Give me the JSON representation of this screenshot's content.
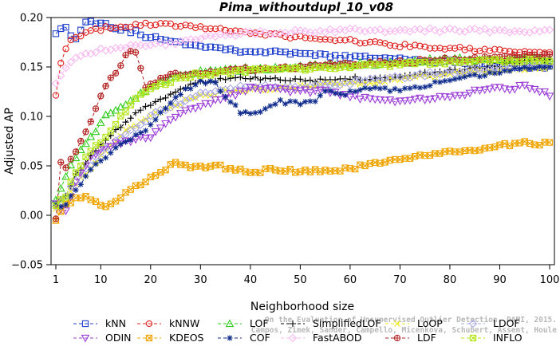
{
  "chart_data": {
    "type": "line",
    "title": "Pima_withoutdupl_10_v08",
    "xlabel": "Neighborhood size",
    "ylabel": "Adjusted AP",
    "xlim": [
      1,
      100
    ],
    "ylim": [
      -0.05,
      0.2
    ],
    "x_ticks": [
      1,
      10,
      20,
      30,
      40,
      50,
      60,
      70,
      80,
      90,
      100
    ],
    "y_ticks": [
      -0.05,
      0.0,
      0.05,
      0.1,
      0.15,
      0.2
    ],
    "y_tick_labels": [
      "−0.05",
      "0.00",
      "0.05",
      "0.10",
      "0.15",
      "0.20"
    ],
    "grid": false,
    "legend_position": "bottom",
    "watermark": [
      "Campos, Zimek, Sander, Campello, Micenkova, Schubert, Assent, Houle",
      "On the Evaluation of Unsupervised Outlier Detection. DAMI, 2015."
    ],
    "series": [
      {
        "name": "kNN",
        "color": "#1f3fcc",
        "marker": "square",
        "dash": "4,3",
        "keyframes": [
          [
            1,
            0.185
          ],
          [
            3,
            0.19
          ],
          [
            4,
            0.183
          ],
          [
            5,
            0.178
          ],
          [
            7,
            0.197
          ],
          [
            10,
            0.195
          ],
          [
            13,
            0.19
          ],
          [
            15,
            0.188
          ],
          [
            20,
            0.18
          ],
          [
            25,
            0.175
          ],
          [
            30,
            0.172
          ],
          [
            35,
            0.168
          ],
          [
            40,
            0.166
          ],
          [
            50,
            0.163
          ],
          [
            60,
            0.16
          ],
          [
            70,
            0.158
          ],
          [
            80,
            0.155
          ],
          [
            90,
            0.152
          ],
          [
            100,
            0.149
          ]
        ]
      },
      {
        "name": "kNNW",
        "color": "#e0211f",
        "marker": "circle",
        "dash": "4,3",
        "keyframes": [
          [
            1,
            0.12
          ],
          [
            2,
            0.153
          ],
          [
            3,
            0.17
          ],
          [
            4,
            0.178
          ],
          [
            6,
            0.18
          ],
          [
            8,
            0.186
          ],
          [
            12,
            0.19
          ],
          [
            16,
            0.192
          ],
          [
            20,
            0.193
          ],
          [
            25,
            0.192
          ],
          [
            30,
            0.19
          ],
          [
            40,
            0.185
          ],
          [
            50,
            0.18
          ],
          [
            60,
            0.176
          ],
          [
            70,
            0.172
          ],
          [
            80,
            0.169
          ],
          [
            90,
            0.166
          ],
          [
            100,
            0.164
          ]
        ]
      },
      {
        "name": "LOF",
        "color": "#2ecc1a",
        "marker": "triangle",
        "dash": "4,3",
        "keyframes": [
          [
            1,
            0.015
          ],
          [
            3,
            0.04
          ],
          [
            5,
            0.06
          ],
          [
            8,
            0.078
          ],
          [
            11,
            0.1
          ],
          [
            14,
            0.11
          ],
          [
            17,
            0.12
          ],
          [
            20,
            0.13
          ],
          [
            25,
            0.14
          ],
          [
            30,
            0.145
          ],
          [
            40,
            0.148
          ],
          [
            50,
            0.15
          ],
          [
            60,
            0.152
          ],
          [
            70,
            0.155
          ],
          [
            80,
            0.158
          ],
          [
            90,
            0.158
          ],
          [
            100,
            0.158
          ]
        ]
      },
      {
        "name": "SimplifiedLOF",
        "color": "#000000",
        "marker": "plus",
        "dash": "4,3",
        "keyframes": [
          [
            1,
            0.01
          ],
          [
            3,
            0.02
          ],
          [
            5,
            0.04
          ],
          [
            8,
            0.062
          ],
          [
            11,
            0.075
          ],
          [
            15,
            0.095
          ],
          [
            18,
            0.108
          ],
          [
            22,
            0.118
          ],
          [
            25,
            0.126
          ],
          [
            30,
            0.134
          ],
          [
            35,
            0.138
          ],
          [
            40,
            0.138
          ],
          [
            45,
            0.137
          ],
          [
            50,
            0.136
          ],
          [
            60,
            0.138
          ],
          [
            70,
            0.14
          ],
          [
            80,
            0.146
          ],
          [
            90,
            0.152
          ],
          [
            100,
            0.159
          ]
        ]
      },
      {
        "name": "LoOP",
        "color": "#f0e81a",
        "marker": "x",
        "dash": "4,3",
        "keyframes": [
          [
            1,
            0.005
          ],
          [
            3,
            0.015
          ],
          [
            5,
            0.03
          ],
          [
            8,
            0.048
          ],
          [
            11,
            0.065
          ],
          [
            15,
            0.085
          ],
          [
            20,
            0.1
          ],
          [
            25,
            0.112
          ],
          [
            30,
            0.12
          ],
          [
            35,
            0.125
          ],
          [
            40,
            0.128
          ],
          [
            45,
            0.128
          ],
          [
            50,
            0.13
          ],
          [
            60,
            0.133
          ],
          [
            70,
            0.138
          ],
          [
            80,
            0.143
          ],
          [
            90,
            0.147
          ],
          [
            100,
            0.15
          ]
        ]
      },
      {
        "name": "LDOF",
        "color": "#a7a7e8",
        "marker": "diamond",
        "dash": "4,3",
        "keyframes": [
          [
            1,
            0.01
          ],
          [
            3,
            0.02
          ],
          [
            5,
            0.035
          ],
          [
            8,
            0.052
          ],
          [
            11,
            0.068
          ],
          [
            15,
            0.083
          ],
          [
            20,
            0.1
          ],
          [
            25,
            0.112
          ],
          [
            30,
            0.122
          ],
          [
            35,
            0.128
          ],
          [
            40,
            0.13
          ],
          [
            45,
            0.13
          ],
          [
            50,
            0.13
          ],
          [
            60,
            0.134
          ],
          [
            70,
            0.14
          ],
          [
            80,
            0.145
          ],
          [
            90,
            0.149
          ],
          [
            100,
            0.152
          ]
        ]
      },
      {
        "name": "ODIN",
        "color": "#9b3dd6",
        "marker": "triangle-down",
        "dash": "4,3",
        "keyframes": [
          [
            1,
            0.01
          ],
          [
            3,
            0.005
          ],
          [
            5,
            0.035
          ],
          [
            8,
            0.06
          ],
          [
            11,
            0.07
          ],
          [
            15,
            0.075
          ],
          [
            20,
            0.08
          ],
          [
            25,
            0.1
          ],
          [
            30,
            0.11
          ],
          [
            35,
            0.12
          ],
          [
            40,
            0.128
          ],
          [
            45,
            0.128
          ],
          [
            50,
            0.125
          ],
          [
            55,
            0.125
          ],
          [
            60,
            0.12
          ],
          [
            65,
            0.118
          ],
          [
            70,
            0.115
          ],
          [
            75,
            0.118
          ],
          [
            80,
            0.12
          ],
          [
            85,
            0.125
          ],
          [
            90,
            0.128
          ],
          [
            95,
            0.13
          ],
          [
            100,
            0.122
          ]
        ]
      },
      {
        "name": "KDEOS",
        "color": "#f0a500",
        "marker": "square-x",
        "dash": "4,3",
        "keyframes": [
          [
            1,
            -0.005
          ],
          [
            3,
            0.01
          ],
          [
            5,
            0.017
          ],
          [
            7,
            0.02
          ],
          [
            9,
            0.013
          ],
          [
            11,
            0.01
          ],
          [
            14,
            0.018
          ],
          [
            17,
            0.03
          ],
          [
            20,
            0.037
          ],
          [
            23,
            0.045
          ],
          [
            25,
            0.055
          ],
          [
            28,
            0.047
          ],
          [
            32,
            0.05
          ],
          [
            36,
            0.048
          ],
          [
            40,
            0.044
          ],
          [
            45,
            0.046
          ],
          [
            50,
            0.044
          ],
          [
            55,
            0.045
          ],
          [
            60,
            0.047
          ],
          [
            65,
            0.052
          ],
          [
            70,
            0.058
          ],
          [
            75,
            0.061
          ],
          [
            80,
            0.063
          ],
          [
            85,
            0.066
          ],
          [
            90,
            0.07
          ],
          [
            95,
            0.073
          ],
          [
            100,
            0.072
          ]
        ]
      },
      {
        "name": "COF",
        "color": "#0d2a8c",
        "marker": "star",
        "dash": "4,3",
        "keyframes": [
          [
            1,
            0.01
          ],
          [
            3,
            0.01
          ],
          [
            5,
            0.025
          ],
          [
            8,
            0.045
          ],
          [
            11,
            0.06
          ],
          [
            15,
            0.075
          ],
          [
            20,
            0.09
          ],
          [
            25,
            0.12
          ],
          [
            30,
            0.135
          ],
          [
            33,
            0.133
          ],
          [
            35,
            0.12
          ],
          [
            38,
            0.105
          ],
          [
            42,
            0.103
          ],
          [
            46,
            0.115
          ],
          [
            50,
            0.113
          ],
          [
            53,
            0.115
          ],
          [
            55,
            0.125
          ],
          [
            58,
            0.122
          ],
          [
            62,
            0.128
          ],
          [
            66,
            0.127
          ],
          [
            70,
            0.128
          ],
          [
            74,
            0.13
          ],
          [
            78,
            0.135
          ],
          [
            82,
            0.14
          ],
          [
            86,
            0.142
          ],
          [
            90,
            0.145
          ],
          [
            95,
            0.148
          ],
          [
            100,
            0.15
          ]
        ]
      },
      {
        "name": "FastABOD",
        "color": "#f7b8f0",
        "marker": "diamond",
        "dash": "4,3",
        "keyframes": [
          [
            1,
            0.135
          ],
          [
            3,
            0.15
          ],
          [
            5,
            0.16
          ],
          [
            8,
            0.165
          ],
          [
            11,
            0.168
          ],
          [
            15,
            0.17
          ],
          [
            20,
            0.172
          ],
          [
            25,
            0.175
          ],
          [
            30,
            0.18
          ],
          [
            40,
            0.184
          ],
          [
            50,
            0.186
          ],
          [
            60,
            0.187
          ],
          [
            70,
            0.187
          ],
          [
            80,
            0.187
          ],
          [
            90,
            0.187
          ],
          [
            100,
            0.186
          ]
        ]
      },
      {
        "name": "LDF",
        "color": "#b52222",
        "marker": "circle-plus",
        "dash": "4,3",
        "keyframes": [
          [
            1,
            -0.005
          ],
          [
            2,
            0.055
          ],
          [
            3,
            0.05
          ],
          [
            5,
            0.065
          ],
          [
            7,
            0.085
          ],
          [
            9,
            0.108
          ],
          [
            11,
            0.13
          ],
          [
            13,
            0.145
          ],
          [
            15,
            0.16
          ],
          [
            16,
            0.165
          ],
          [
            17,
            0.164
          ],
          [
            18,
            0.148
          ],
          [
            19,
            0.13
          ],
          [
            20,
            0.133
          ],
          [
            25,
            0.143
          ],
          [
            30,
            0.145
          ],
          [
            40,
            0.148
          ],
          [
            50,
            0.15
          ],
          [
            60,
            0.153
          ],
          [
            70,
            0.155
          ],
          [
            80,
            0.158
          ],
          [
            90,
            0.16
          ],
          [
            100,
            0.162
          ]
        ]
      },
      {
        "name": "INFLO",
        "color": "#b5e61d",
        "marker": "square-x",
        "dash": "4,3",
        "keyframes": [
          [
            1,
            0.01
          ],
          [
            3,
            0.02
          ],
          [
            5,
            0.045
          ],
          [
            8,
            0.065
          ],
          [
            11,
            0.08
          ],
          [
            14,
            0.1
          ],
          [
            17,
            0.117
          ],
          [
            20,
            0.127
          ],
          [
            25,
            0.138
          ],
          [
            30,
            0.143
          ],
          [
            40,
            0.146
          ],
          [
            50,
            0.148
          ],
          [
            60,
            0.15
          ],
          [
            70,
            0.153
          ],
          [
            80,
            0.155
          ],
          [
            90,
            0.156
          ],
          [
            100,
            0.157
          ]
        ]
      }
    ]
  }
}
